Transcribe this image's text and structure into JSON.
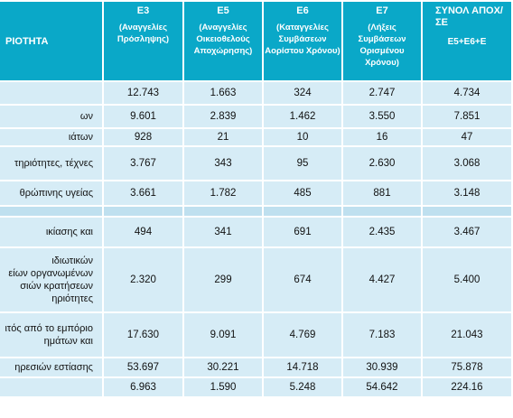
{
  "header": {
    "category_label": "ΡΙΟΤΗΤΑ",
    "columns": [
      {
        "code": "Ε3",
        "sub": "(Αναγγελίες Πρόσληψης)"
      },
      {
        "code": "Ε5",
        "sub": "(Αναγγελίες Οικειοθελούς Αποχώρησης)"
      },
      {
        "code": "Ε6",
        "sub": "(Καταγγελίες Συμβάσεων Αορίστου Χρόνου)"
      },
      {
        "code": "Ε7",
        "sub": "(Λήξεις Συμβάσεων Ορισμένου Χρόνου)"
      },
      {
        "code": "ΣΥΝΟΛ ΑΠΟΧ/ΣΕ",
        "sub": "Ε5+Ε6+Ε"
      }
    ]
  },
  "rows": [
    {
      "label": "",
      "values": [
        "12.743",
        "1.663",
        "324",
        "2.747",
        "4.734"
      ]
    },
    {
      "label": "ων",
      "values": [
        "9.601",
        "2.839",
        "1.462",
        "3.550",
        "7.851"
      ]
    },
    {
      "label": "ιάτων",
      "values": [
        "928",
        "21",
        "10",
        "16",
        "47"
      ]
    },
    {
      "label": "τηριότητες, τέχνες",
      "values": [
        "3.767",
        "343",
        "95",
        "2.630",
        "3.068"
      ]
    },
    {
      "label": "θρώπινης υγείας",
      "values": [
        "3.661",
        "1.782",
        "485",
        "881",
        "3.148"
      ]
    },
    {
      "label": "",
      "values": [
        "",
        "",
        "",
        "",
        ""
      ]
    },
    {
      "label": "ικίασης και",
      "values": [
        "494",
        "341",
        "691",
        "2.435",
        "3.467"
      ]
    },
    {
      "label": "ιδιωτικών\nείων οργανωμένων\nσιών κρατήσεων\nηριότητες",
      "values": [
        "2.320",
        "299",
        "674",
        "4.427",
        "5.400"
      ]
    },
    {
      "label": "ιτός από το εμπόριο\nημάτων και",
      "values": [
        "17.630",
        "9.091",
        "4.769",
        "7.183",
        "21.043"
      ]
    },
    {
      "label": "ηρεσιών εστίασης",
      "values": [
        "53.697",
        "30.221",
        "14.718",
        "30.939",
        "75.878"
      ]
    },
    {
      "label": "",
      "values": [
        "6.963",
        "1.590",
        "5.248",
        "54.642",
        "224.16"
      ]
    }
  ]
}
